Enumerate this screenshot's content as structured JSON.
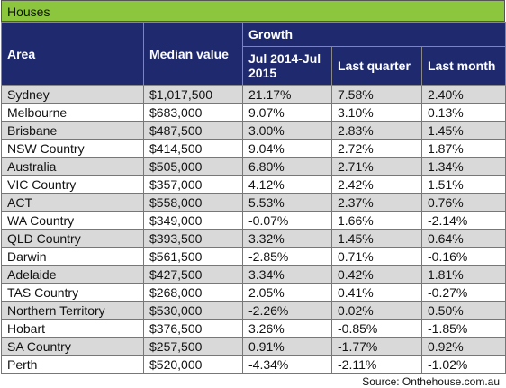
{
  "title": "Houses",
  "header": {
    "area": "Area",
    "median": "Median value",
    "growth": "Growth",
    "columns": [
      "Jul 2014-Jul 2015",
      "Last quarter",
      "Last month"
    ]
  },
  "table": {
    "rows": [
      [
        "Sydney",
        "$1,017,500",
        "21.17%",
        "7.58%",
        "2.40%"
      ],
      [
        "Melbourne",
        "$683,000",
        "9.07%",
        "3.10%",
        "0.13%"
      ],
      [
        "Brisbane",
        "$487,500",
        "3.00%",
        "2.83%",
        "1.45%"
      ],
      [
        "NSW Country",
        "$414,500",
        "9.04%",
        "2.72%",
        "1.87%"
      ],
      [
        "Australia",
        "$505,000",
        "6.80%",
        "2.71%",
        "1.34%"
      ],
      [
        "VIC Country",
        "$357,000",
        "4.12%",
        "2.42%",
        "1.51%"
      ],
      [
        "ACT",
        "$558,000",
        "5.53%",
        "2.37%",
        "0.76%"
      ],
      [
        "WA Country",
        "$349,000",
        "-0.07%",
        "1.66%",
        "-2.14%"
      ],
      [
        "QLD Country",
        "$393,500",
        "3.32%",
        "1.45%",
        "0.64%"
      ],
      [
        "Darwin",
        "$561,500",
        "-2.85%",
        "0.71%",
        "-0.16%"
      ],
      [
        "Adelaide",
        "$427,500",
        "3.34%",
        "0.42%",
        "1.81%"
      ],
      [
        "TAS Country",
        "$268,000",
        "2.05%",
        "0.41%",
        "-0.27%"
      ],
      [
        "Northern Territory",
        "$530,000",
        "-2.26%",
        "0.02%",
        "0.50%"
      ],
      [
        "Hobart",
        "$376,500",
        "3.26%",
        "-0.85%",
        "-1.85%"
      ],
      [
        "SA Country",
        "$257,500",
        "0.91%",
        "-1.77%",
        "0.92%"
      ],
      [
        "Perth",
        "$520,000",
        "-4.34%",
        "-2.11%",
        "-1.02%"
      ]
    ]
  },
  "source": "Source: Onthehouse.com.au"
}
